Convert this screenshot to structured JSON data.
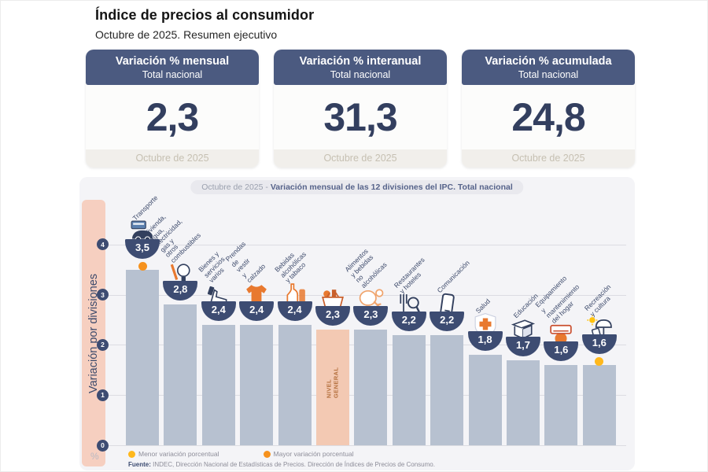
{
  "header": {
    "title": "Índice de precios al consumidor",
    "subtitle": "Octubre de 2025. Resumen ejecutivo"
  },
  "cards": [
    {
      "title": "Variación % mensual",
      "subtitle": "Total nacional",
      "value": "2,3",
      "period": "Octubre de 2025"
    },
    {
      "title": "Variación % interanual",
      "subtitle": "Total nacional",
      "value": "31,3",
      "period": "Octubre de 2025"
    },
    {
      "title": "Variación % acumulada",
      "subtitle": "Total nacional",
      "value": "24,8",
      "period": "Octubre de 2025"
    }
  ],
  "chart": {
    "banner_period": "Octubre de 2025 -",
    "banner_description": "Variación mensual de las 12 divisiones del IPC. Total nacional",
    "y_axis_label": "Variación por divisiones",
    "unit": "%",
    "legend": [
      {
        "label": "Menor variación porcentual",
        "color": "#FFB81C"
      },
      {
        "label": "Mayor variación porcentual",
        "color": "#F6921E"
      }
    ],
    "source_label": "Fuente:",
    "source_text": "INDEC, Dirección Nacional de Estadísticas de Precios. Dirección de Índices de Precios de Consumo."
  },
  "chart_data": {
    "type": "bar",
    "title": "Octubre de 2025 - Variación mensual de las 12 divisiones del IPC. Total nacional",
    "ylabel": "Variación por divisiones",
    "unit": "%",
    "ylim": [
      0,
      4
    ],
    "yticks": [
      0,
      1,
      2,
      3,
      4
    ],
    "grid": true,
    "bar_color": "#B7C1D0",
    "highlight_color": "#F3C9B3",
    "badge_color": "#3D4C72",
    "markers": {
      "menor": "#FFB81C",
      "mayor": "#F6921E"
    },
    "divisions": [
      {
        "label": "Transporte",
        "value": 3.5,
        "value_label": "3,5",
        "icon": "transport-icon",
        "marker": "mayor"
      },
      {
        "label": "Vivienda, agua,\nelectricidad, gas y\notros combustibles",
        "value": 2.8,
        "value_label": "2,8",
        "icon": "housing-utilities-icon"
      },
      {
        "label": "Bienes y\nservicios varios",
        "value": 2.4,
        "value_label": "2,4",
        "icon": "misc-goods-icon"
      },
      {
        "label": "Prendas de vestir\ny calzado",
        "value": 2.4,
        "value_label": "2,4",
        "icon": "clothing-icon"
      },
      {
        "label": "Bebidas\nalcohólicas\ny tabaco",
        "value": 2.4,
        "value_label": "2,4",
        "icon": "alcohol-tobacco-icon"
      },
      {
        "label": "",
        "bar_label": "NIVEL\nGENERAL",
        "value": 2.3,
        "value_label": "2,3",
        "icon": "general-basket-icon",
        "highlight": true
      },
      {
        "label": "Alimentos y bebidas\nno alcohólicas",
        "value": 2.3,
        "value_label": "2,3",
        "icon": "food-icon"
      },
      {
        "label": "Restaurantes\ny hoteles",
        "value": 2.2,
        "value_label": "2,2",
        "icon": "restaurant-icon"
      },
      {
        "label": "Comunicación",
        "value": 2.2,
        "value_label": "2,2",
        "icon": "communication-icon"
      },
      {
        "label": "Salud",
        "value": 1.8,
        "value_label": "1,8",
        "icon": "health-icon"
      },
      {
        "label": "Educación",
        "value": 1.7,
        "value_label": "1,7",
        "icon": "education-icon"
      },
      {
        "label": "Equipamiento\ny mantenimiento\ndel hogar",
        "value": 1.6,
        "value_label": "1,6",
        "icon": "home-equipment-icon"
      },
      {
        "label": "Recreación\ny cultura",
        "value": 1.6,
        "value_label": "1,6",
        "icon": "recreation-icon",
        "marker": "menor"
      }
    ]
  }
}
